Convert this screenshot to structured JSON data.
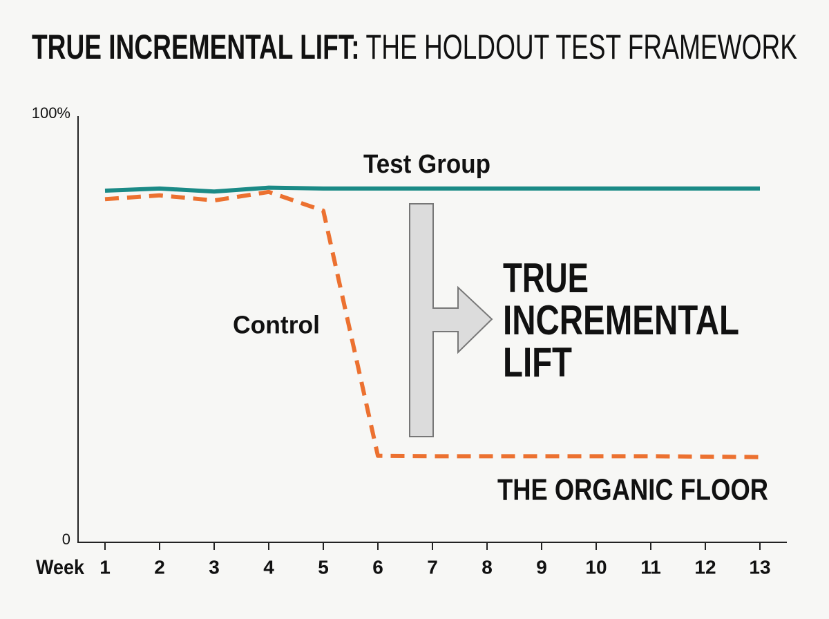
{
  "chart_data": {
    "type": "line",
    "title": [
      "TRUE INCREMENTAL LIFT:",
      "THE HOLDOUT TEST FRAMEWORK"
    ],
    "x": [
      1,
      2,
      3,
      4,
      5,
      6,
      7,
      8,
      9,
      10,
      11,
      12,
      13
    ],
    "xlabel": "Week",
    "xlim": [
      0.5,
      13.5
    ],
    "xticks": [
      1,
      2,
      3,
      4,
      5,
      6,
      7,
      8,
      9,
      10,
      11,
      12,
      13
    ],
    "ylim": [
      0,
      100
    ],
    "yticks": [
      0,
      {
        "value": 100,
        "label": "100%"
      }
    ],
    "grid": false,
    "series": [
      {
        "name": "Test Group",
        "color": "#1b8a86",
        "dashed": false,
        "values": [
          82.5,
          83,
          82.3,
          83.2,
          83,
          83,
          83,
          83,
          83,
          83,
          83,
          83,
          83
        ]
      },
      {
        "name": "Control",
        "color": "#ec7130",
        "dashed": true,
        "values": [
          80.5,
          81.4,
          80.2,
          82.2,
          77.8,
          20.3,
          20.2,
          20.2,
          20.2,
          20.2,
          20.2,
          20.1,
          20
        ]
      }
    ],
    "lift_label": [
      "TRUE",
      "INCREMENTAL",
      "LIFT"
    ],
    "annotations": [
      "THE ORGANIC FLOOR"
    ]
  }
}
